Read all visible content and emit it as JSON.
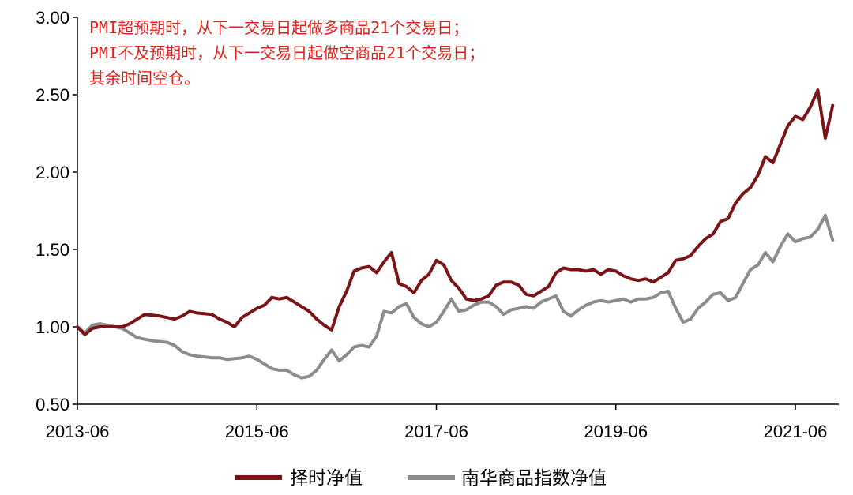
{
  "chart_data": {
    "type": "line",
    "title": "",
    "xlabel": "",
    "ylabel": "",
    "ylim": [
      0.5,
      3.0
    ],
    "yticks": [
      "3.00",
      "2.50",
      "2.00",
      "1.50",
      "1.00",
      "0.50"
    ],
    "xlim": [
      "2013-06",
      "2021-11"
    ],
    "xticks": [
      "2013-06",
      "2015-06",
      "2017-06",
      "2019-06",
      "2021-06"
    ],
    "grid": false,
    "legend_position": "bottom",
    "annotation_lines": [
      "PMI超预期时，从下一交易日起做多商品21个交易日；",
      "PMI不及预期时，从下一交易日起做空商品21个交易日；",
      "其余时间空仓。"
    ],
    "series": [
      {
        "name": "择时净值",
        "color": "#7b1416",
        "points": [
          [
            "2013-06",
            1.0
          ],
          [
            "2013-07",
            0.95
          ],
          [
            "2013-08",
            0.99
          ],
          [
            "2013-09",
            1.0
          ],
          [
            "2013-10",
            1.0
          ],
          [
            "2013-12",
            1.0
          ],
          [
            "2014-01",
            1.02
          ],
          [
            "2014-02",
            1.05
          ],
          [
            "2014-03",
            1.08
          ],
          [
            "2014-05",
            1.07
          ],
          [
            "2014-07",
            1.05
          ],
          [
            "2014-08",
            1.07
          ],
          [
            "2014-09",
            1.1
          ],
          [
            "2014-10",
            1.09
          ],
          [
            "2014-12",
            1.08
          ],
          [
            "2015-01",
            1.05
          ],
          [
            "2015-02",
            1.03
          ],
          [
            "2015-03",
            1.0
          ],
          [
            "2015-04",
            1.06
          ],
          [
            "2015-05",
            1.09
          ],
          [
            "2015-06",
            1.12
          ],
          [
            "2015-07",
            1.14
          ],
          [
            "2015-08",
            1.19
          ],
          [
            "2015-09",
            1.18
          ],
          [
            "2015-10",
            1.19
          ],
          [
            "2015-11",
            1.16
          ],
          [
            "2015-12",
            1.13
          ],
          [
            "2016-01",
            1.1
          ],
          [
            "2016-02",
            1.05
          ],
          [
            "2016-03",
            1.01
          ],
          [
            "2016-04",
            0.98
          ],
          [
            "2016-05",
            1.13
          ],
          [
            "2016-06",
            1.23
          ],
          [
            "2016-07",
            1.36
          ],
          [
            "2016-08",
            1.38
          ],
          [
            "2016-09",
            1.39
          ],
          [
            "2016-10",
            1.35
          ],
          [
            "2016-11",
            1.42
          ],
          [
            "2016-12",
            1.48
          ],
          [
            "2017-01",
            1.28
          ],
          [
            "2017-02",
            1.26
          ],
          [
            "2017-03",
            1.22
          ],
          [
            "2017-04",
            1.3
          ],
          [
            "2017-05",
            1.34
          ],
          [
            "2017-06",
            1.43
          ],
          [
            "2017-07",
            1.4
          ],
          [
            "2017-08",
            1.3
          ],
          [
            "2017-09",
            1.25
          ],
          [
            "2017-10",
            1.18
          ],
          [
            "2017-11",
            1.17
          ],
          [
            "2017-12",
            1.18
          ],
          [
            "2018-01",
            1.2
          ],
          [
            "2018-02",
            1.27
          ],
          [
            "2018-03",
            1.29
          ],
          [
            "2018-04",
            1.29
          ],
          [
            "2018-05",
            1.27
          ],
          [
            "2018-06",
            1.21
          ],
          [
            "2018-07",
            1.2
          ],
          [
            "2018-08",
            1.23
          ],
          [
            "2018-09",
            1.26
          ],
          [
            "2018-10",
            1.35
          ],
          [
            "2018-11",
            1.38
          ],
          [
            "2018-12",
            1.37
          ],
          [
            "2019-01",
            1.37
          ],
          [
            "2019-02",
            1.36
          ],
          [
            "2019-03",
            1.37
          ],
          [
            "2019-04",
            1.34
          ],
          [
            "2019-05",
            1.37
          ],
          [
            "2019-06",
            1.36
          ],
          [
            "2019-07",
            1.33
          ],
          [
            "2019-08",
            1.31
          ],
          [
            "2019-09",
            1.3
          ],
          [
            "2019-10",
            1.31
          ],
          [
            "2019-11",
            1.29
          ],
          [
            "2019-12",
            1.32
          ],
          [
            "2020-01",
            1.35
          ],
          [
            "2020-02",
            1.43
          ],
          [
            "2020-03",
            1.44
          ],
          [
            "2020-04",
            1.46
          ],
          [
            "2020-05",
            1.52
          ],
          [
            "2020-06",
            1.57
          ],
          [
            "2020-07",
            1.6
          ],
          [
            "2020-08",
            1.68
          ],
          [
            "2020-09",
            1.7
          ],
          [
            "2020-10",
            1.8
          ],
          [
            "2020-11",
            1.86
          ],
          [
            "2020-12",
            1.9
          ],
          [
            "2021-01",
            1.98
          ],
          [
            "2021-02",
            2.1
          ],
          [
            "2021-03",
            2.06
          ],
          [
            "2021-04",
            2.18
          ],
          [
            "2021-05",
            2.3
          ],
          [
            "2021-06",
            2.36
          ],
          [
            "2021-07",
            2.34
          ],
          [
            "2021-08",
            2.42
          ],
          [
            "2021-09",
            2.53
          ],
          [
            "2021-10",
            2.22
          ],
          [
            "2021-11",
            2.43
          ]
        ]
      },
      {
        "name": "南华商品指数净值",
        "color": "#8c8c8c",
        "points": [
          [
            "2013-06",
            1.0
          ],
          [
            "2013-07",
            0.96
          ],
          [
            "2013-08",
            1.01
          ],
          [
            "2013-09",
            1.02
          ],
          [
            "2013-10",
            1.01
          ],
          [
            "2013-12",
            0.99
          ],
          [
            "2014-01",
            0.96
          ],
          [
            "2014-02",
            0.93
          ],
          [
            "2014-03",
            0.92
          ],
          [
            "2014-04",
            0.91
          ],
          [
            "2014-06",
            0.9
          ],
          [
            "2014-07",
            0.88
          ],
          [
            "2014-08",
            0.84
          ],
          [
            "2014-09",
            0.82
          ],
          [
            "2014-10",
            0.81
          ],
          [
            "2014-12",
            0.8
          ],
          [
            "2015-01",
            0.8
          ],
          [
            "2015-02",
            0.79
          ],
          [
            "2015-04",
            0.8
          ],
          [
            "2015-05",
            0.81
          ],
          [
            "2015-06",
            0.79
          ],
          [
            "2015-07",
            0.76
          ],
          [
            "2015-08",
            0.73
          ],
          [
            "2015-09",
            0.72
          ],
          [
            "2015-10",
            0.72
          ],
          [
            "2015-11",
            0.69
          ],
          [
            "2015-12",
            0.67
          ],
          [
            "2016-01",
            0.68
          ],
          [
            "2016-02",
            0.72
          ],
          [
            "2016-03",
            0.79
          ],
          [
            "2016-04",
            0.85
          ],
          [
            "2016-05",
            0.78
          ],
          [
            "2016-06",
            0.82
          ],
          [
            "2016-07",
            0.87
          ],
          [
            "2016-08",
            0.88
          ],
          [
            "2016-09",
            0.87
          ],
          [
            "2016-10",
            0.94
          ],
          [
            "2016-11",
            1.1
          ],
          [
            "2016-12",
            1.09
          ],
          [
            "2017-01",
            1.13
          ],
          [
            "2017-02",
            1.15
          ],
          [
            "2017-03",
            1.06
          ],
          [
            "2017-04",
            1.02
          ],
          [
            "2017-05",
            1.0
          ],
          [
            "2017-06",
            1.03
          ],
          [
            "2017-07",
            1.1
          ],
          [
            "2017-08",
            1.18
          ],
          [
            "2017-09",
            1.1
          ],
          [
            "2017-10",
            1.11
          ],
          [
            "2017-11",
            1.14
          ],
          [
            "2017-12",
            1.16
          ],
          [
            "2018-01",
            1.16
          ],
          [
            "2018-02",
            1.13
          ],
          [
            "2018-03",
            1.08
          ],
          [
            "2018-04",
            1.11
          ],
          [
            "2018-05",
            1.12
          ],
          [
            "2018-06",
            1.13
          ],
          [
            "2018-07",
            1.12
          ],
          [
            "2018-08",
            1.16
          ],
          [
            "2018-09",
            1.18
          ],
          [
            "2018-10",
            1.2
          ],
          [
            "2018-11",
            1.1
          ],
          [
            "2018-12",
            1.07
          ],
          [
            "2019-01",
            1.11
          ],
          [
            "2019-02",
            1.14
          ],
          [
            "2019-03",
            1.16
          ],
          [
            "2019-04",
            1.17
          ],
          [
            "2019-05",
            1.16
          ],
          [
            "2019-06",
            1.17
          ],
          [
            "2019-07",
            1.18
          ],
          [
            "2019-08",
            1.16
          ],
          [
            "2019-09",
            1.18
          ],
          [
            "2019-10",
            1.18
          ],
          [
            "2019-11",
            1.19
          ],
          [
            "2019-12",
            1.22
          ],
          [
            "2020-01",
            1.23
          ],
          [
            "2020-02",
            1.12
          ],
          [
            "2020-03",
            1.03
          ],
          [
            "2020-04",
            1.05
          ],
          [
            "2020-05",
            1.12
          ],
          [
            "2020-06",
            1.16
          ],
          [
            "2020-07",
            1.21
          ],
          [
            "2020-08",
            1.22
          ],
          [
            "2020-09",
            1.17
          ],
          [
            "2020-10",
            1.19
          ],
          [
            "2020-11",
            1.28
          ],
          [
            "2020-12",
            1.37
          ],
          [
            "2021-01",
            1.4
          ],
          [
            "2021-02",
            1.48
          ],
          [
            "2021-03",
            1.42
          ],
          [
            "2021-04",
            1.52
          ],
          [
            "2021-05",
            1.6
          ],
          [
            "2021-06",
            1.55
          ],
          [
            "2021-07",
            1.57
          ],
          [
            "2021-08",
            1.58
          ],
          [
            "2021-09",
            1.63
          ],
          [
            "2021-10",
            1.72
          ],
          [
            "2021-11",
            1.56
          ]
        ]
      }
    ]
  }
}
